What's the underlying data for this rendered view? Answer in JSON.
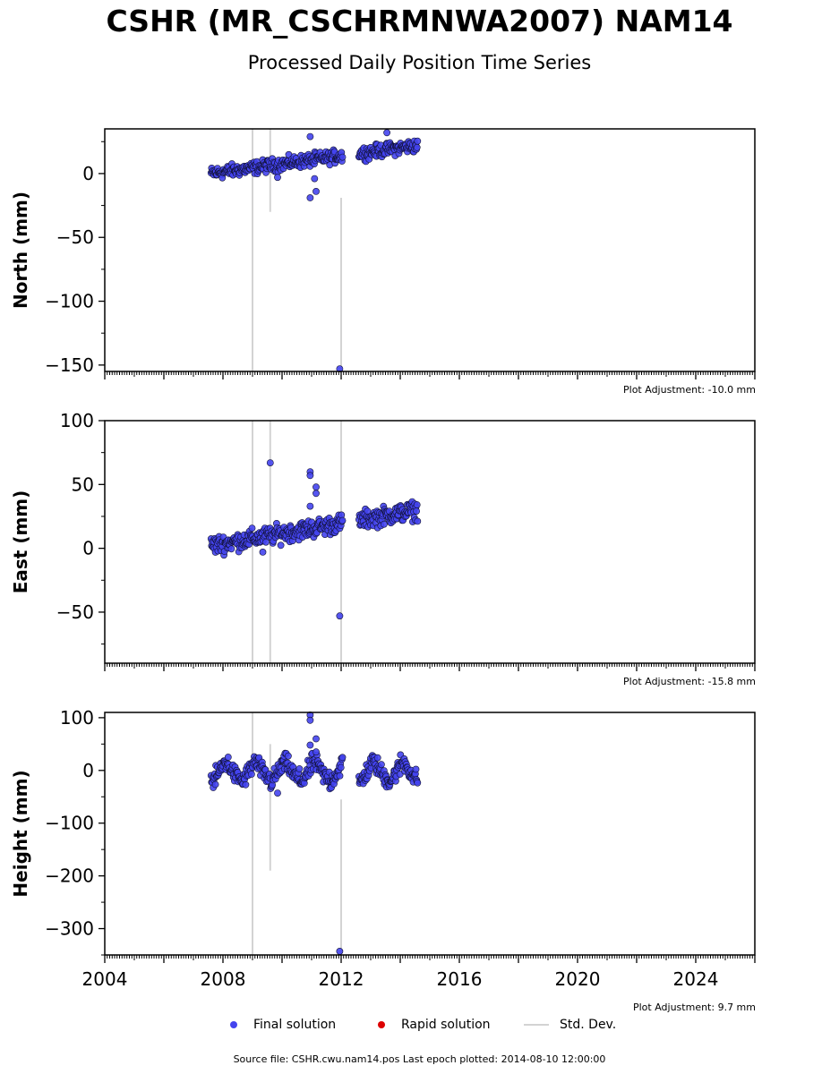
{
  "title": "CSHR (MR_CSCHRMNWA2007) NAM14",
  "subtitle": "Processed Daily Position Time Series",
  "colors": {
    "final": "#4444ee",
    "rapid": "#dd0000",
    "stddev": "#d3d3d3"
  },
  "legend": {
    "final": "Final solution",
    "rapid": "Rapid solution",
    "stddev": "Std. Dev."
  },
  "footer": "Source file: CSHR.cwu.nam14.pos  Last epoch plotted: 2014-08-10 12:00:00",
  "chart_data": [
    {
      "type": "scatter",
      "ylabel": "North (mm)",
      "ylim": [
        -155,
        35
      ],
      "yticks": [
        0,
        -50,
        -100,
        -150
      ],
      "xlim": [
        2004,
        2026
      ],
      "adjustment": "Plot Adjustment: -10.0 mm",
      "trend": {
        "start": [
          2007.6,
          0
        ],
        "end": [
          2014.6,
          22
        ],
        "noise": 3.5
      },
      "outliers": [
        [
          2010.95,
          -19
        ],
        [
          2011.15,
          -14
        ],
        [
          2010.95,
          29
        ],
        [
          2013.55,
          32
        ],
        [
          2011.1,
          -4
        ],
        [
          2009.85,
          -3
        ],
        [
          2011.95,
          -153
        ]
      ],
      "stddev_bars": [
        [
          2009.0,
          -155,
          35
        ],
        [
          2009.6,
          -30,
          35
        ],
        [
          2012.0,
          -155,
          -19
        ]
      ]
    },
    {
      "type": "scatter",
      "ylabel": "East (mm)",
      "ylim": [
        -90,
        100
      ],
      "yticks": [
        100,
        50,
        0,
        -50
      ],
      "xlim": [
        2004,
        2026
      ],
      "adjustment": "Plot Adjustment: -15.8 mm",
      "trend": {
        "start": [
          2007.6,
          2
        ],
        "end": [
          2014.6,
          30
        ],
        "noise": 5
      },
      "outliers": [
        [
          2009.6,
          67
        ],
        [
          2010.95,
          60
        ],
        [
          2010.95,
          57
        ],
        [
          2011.15,
          48
        ],
        [
          2011.15,
          43
        ],
        [
          2010.95,
          33
        ],
        [
          2009.35,
          -3
        ],
        [
          2011.95,
          -53
        ]
      ],
      "stddev_bars": [
        [
          2009.0,
          -90,
          100
        ],
        [
          2009.6,
          -90,
          100
        ],
        [
          2012.0,
          -90,
          100
        ]
      ]
    },
    {
      "type": "scatter",
      "ylabel": "Height (mm)",
      "ylim": [
        -350,
        110
      ],
      "yticks": [
        100,
        0,
        -100,
        -200,
        -300
      ],
      "xlim": [
        2004,
        2026
      ],
      "xticks": [
        2004,
        2008,
        2012,
        2016,
        2020,
        2024
      ],
      "adjustment": "Plot Adjustment: 9.7 mm",
      "trend": {
        "start": [
          2007.6,
          0
        ],
        "end": [
          2014.6,
          0
        ],
        "noise": 12,
        "seasonal": 15
      },
      "outliers": [
        [
          2010.95,
          105
        ],
        [
          2010.95,
          95
        ],
        [
          2011.15,
          60
        ],
        [
          2010.95,
          48
        ],
        [
          2011.15,
          35
        ],
        [
          2009.85,
          -43
        ],
        [
          2011.95,
          -343
        ]
      ],
      "stddev_bars": [
        [
          2009.0,
          -350,
          110
        ],
        [
          2009.6,
          -190,
          50
        ],
        [
          2012.0,
          -350,
          -55
        ]
      ]
    }
  ]
}
